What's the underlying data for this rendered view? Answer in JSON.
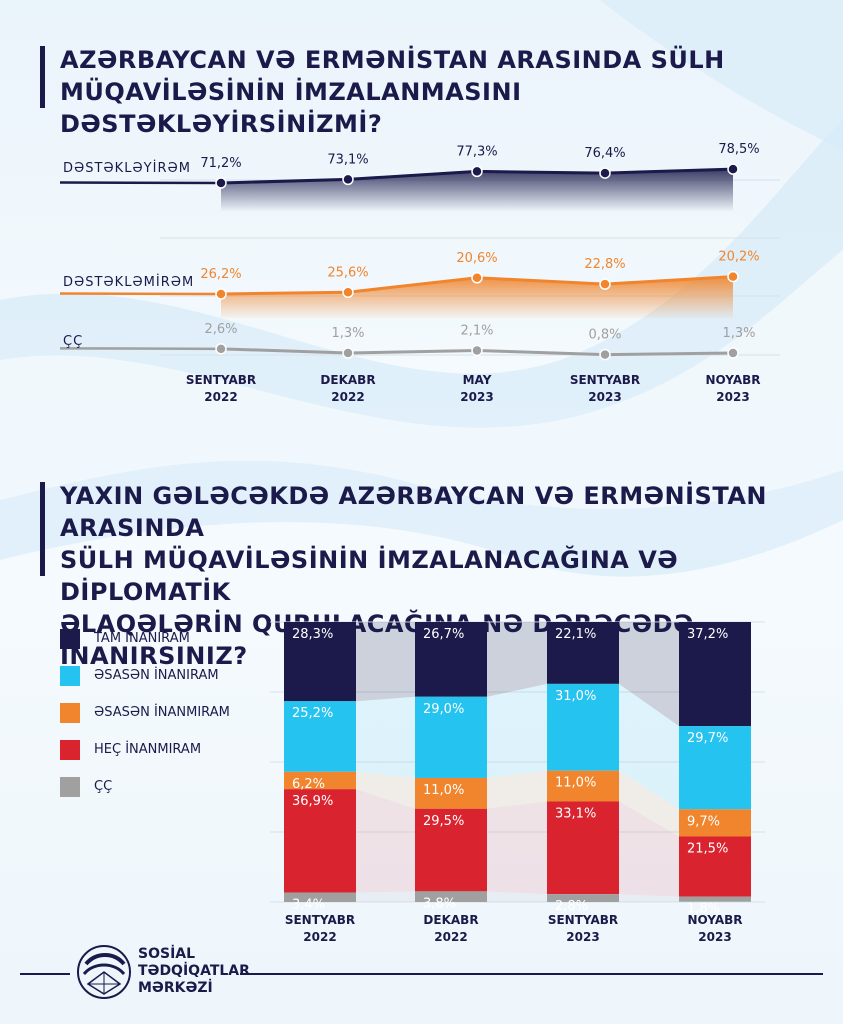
{
  "colors": {
    "navy": "#1b1a4a",
    "orange": "#f0852d",
    "grey": "#a0a0a0",
    "cyan": "#25c3ef",
    "red": "#d9232e"
  },
  "header": {
    "title1_line1": "AZƏRBAYCAN VƏ ERMƏNİSTAN ARASINDA SÜLH",
    "title1_line2": "MÜQAVİLƏSİNİN İMZALANMASINI DƏSTƏKLƏYİRSİNİZMİ?",
    "title2_line1": "YAXIN GƏLƏCƏKDƏ AZƏRBAYCAN VƏ ERMƏNİSTAN ARASINDA",
    "title2_line2": "SÜLH MÜQAVİLƏSİNİN İMZALANACAĞINA VƏ DİPLOMATİK",
    "title2_line3": "ƏLAQƏLƏRİN QURULACAĞINA NƏ DƏRƏCƏDƏ İNANIRSINIZ?"
  },
  "chart_data": [
    {
      "type": "line",
      "categories": [
        [
          "SENTYABR",
          "2022"
        ],
        [
          "DEKABR",
          "2022"
        ],
        [
          "MAY",
          "2023"
        ],
        [
          "SENTYABR",
          "2023"
        ],
        [
          "NOYABR",
          "2023"
        ]
      ],
      "series": [
        {
          "name": "DƏSTƏKLƏYİRƏM",
          "values": [
            71.2,
            73.1,
            77.3,
            76.4,
            78.5
          ],
          "labels": [
            "71,2%",
            "73,1%",
            "77,3%",
            "76,4%",
            "78,5%"
          ],
          "color": "#1b1a4a"
        },
        {
          "name": "DƏSTƏKLƏMİRƏM",
          "values": [
            26.2,
            25.6,
            20.6,
            22.8,
            20.2
          ],
          "labels": [
            "26,2%",
            "25,6%",
            "20,6%",
            "22,8%",
            "20,2%"
          ],
          "color": "#f0852d"
        },
        {
          "name": "ÇÇ",
          "values": [
            2.6,
            1.3,
            2.1,
            0.8,
            1.3
          ],
          "labels": [
            "2,6%",
            "1,3%",
            "2,1%",
            "0,8%",
            "1,3%"
          ],
          "color": "#a0a0a0"
        }
      ]
    },
    {
      "type": "bar",
      "stacked": true,
      "categories": [
        [
          "SENTYABR",
          "2022"
        ],
        [
          "DEKABR",
          "2022"
        ],
        [
          "SENTYABR",
          "2023"
        ],
        [
          "NOYABR",
          "2023"
        ]
      ],
      "series": [
        {
          "name": "TAM İNANIRAM",
          "values": [
            28.3,
            26.7,
            22.1,
            37.2
          ],
          "labels": [
            "28,3%",
            "26,7%",
            "22,1%",
            "37,2%"
          ],
          "color": "#1b1a4a"
        },
        {
          "name": "ƏSASƏN İNANIRAM",
          "values": [
            25.2,
            29.0,
            31.0,
            29.7
          ],
          "labels": [
            "25,2%",
            "29,0%",
            "31,0%",
            "29,7%"
          ],
          "color": "#25c3ef"
        },
        {
          "name": "ƏSASƏN İNANMIRAM",
          "values": [
            6.2,
            11.0,
            11.0,
            9.7
          ],
          "labels": [
            "6,2%",
            "11,0%",
            "11,0%",
            "9,7%"
          ],
          "color": "#f0852d"
        },
        {
          "name": "HEÇ İNANMIRAM",
          "values": [
            36.9,
            29.5,
            33.1,
            21.5
          ],
          "labels": [
            "36,9%",
            "29,5%",
            "33,1%",
            "21,5%"
          ],
          "color": "#d9232e"
        },
        {
          "name": "ÇÇ",
          "values": [
            3.4,
            3.8,
            2.8,
            1.8
          ],
          "labels": [
            "3,4%",
            "3,8%",
            "2,8%",
            "1,8%"
          ],
          "color": "#a0a0a0"
        }
      ]
    }
  ],
  "footer": {
    "org_line1": "SOSİAL",
    "org_line2": "TƏDQİQATLAR",
    "org_line3": "MƏRKƏZİ"
  }
}
